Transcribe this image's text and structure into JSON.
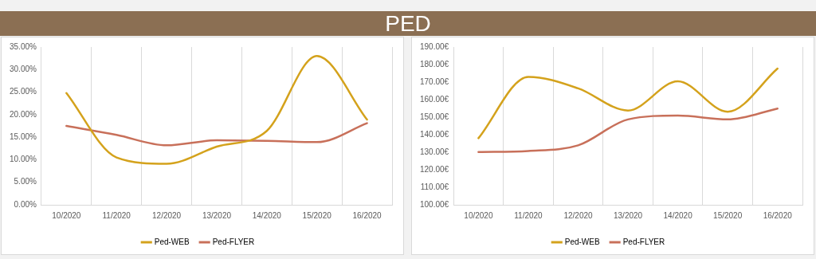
{
  "chart_data": [
    {
      "type": "line",
      "title": "PED",
      "categories": [
        "10/2020",
        "11/2020",
        "12/2020",
        "13/2020",
        "14/2020",
        "15/2020",
        "16/2020"
      ],
      "series": [
        {
          "name": "Ped-WEB",
          "color": "#d4a21c",
          "values": [
            24.8,
            10.5,
            9.1,
            12.9,
            16.4,
            33.0,
            18.9
          ]
        },
        {
          "name": "Ped-FLYER",
          "color": "#c8705a",
          "values": [
            17.5,
            15.5,
            13.2,
            14.3,
            14.2,
            13.9,
            18.1
          ]
        }
      ],
      "ylim": [
        0,
        35
      ],
      "yticks": [
        {
          "value": 0,
          "label": "0.00%"
        },
        {
          "value": 5,
          "label": "5.00%"
        },
        {
          "value": 10,
          "label": "10.00%"
        },
        {
          "value": 15,
          "label": "15.00%"
        },
        {
          "value": 20,
          "label": "20.00%"
        },
        {
          "value": 25,
          "label": "25.00%"
        },
        {
          "value": 30,
          "label": "30.00%"
        },
        {
          "value": 35,
          "label": "35.00%"
        }
      ],
      "grid": "x",
      "legend": "bottom",
      "marker": "none",
      "line_style": "solid"
    },
    {
      "type": "line",
      "categories": [
        "10/2020",
        "11/2020",
        "12/2020",
        "13/2020",
        "14/2020",
        "15/2020",
        "16/2020"
      ],
      "series": [
        {
          "name": "Ped-WEB",
          "color": "#d4a21c",
          "values": [
            138.0,
            173.0,
            166.4,
            153.8,
            170.4,
            153.1,
            177.7
          ]
        },
        {
          "name": "Ped-FLYER",
          "color": "#c8705a",
          "values": [
            130.1,
            130.7,
            133.9,
            148.7,
            150.9,
            148.7,
            154.9
          ]
        }
      ],
      "ylim": [
        100,
        190
      ],
      "yticks": [
        {
          "value": 100,
          "label": "100.00€"
        },
        {
          "value": 110,
          "label": "110.00€"
        },
        {
          "value": 120,
          "label": "120.00€"
        },
        {
          "value": 130,
          "label": "130.00€"
        },
        {
          "value": 140,
          "label": "140.00€"
        },
        {
          "value": 150,
          "label": "150.00€"
        },
        {
          "value": 160,
          "label": "160.00€"
        },
        {
          "value": 170,
          "label": "170.00€"
        },
        {
          "value": 180,
          "label": "180.00€"
        },
        {
          "value": 190,
          "label": "190.00€"
        }
      ],
      "grid": "x",
      "legend": "bottom",
      "marker": "none",
      "line_style": "solid"
    }
  ]
}
